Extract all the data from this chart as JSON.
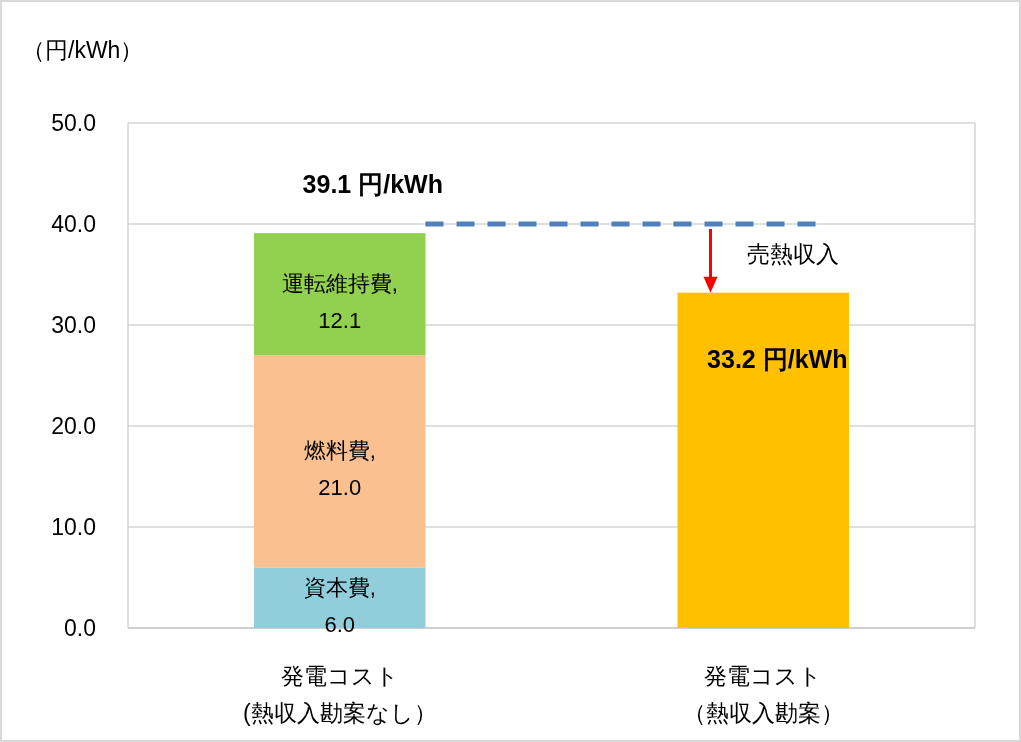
{
  "chart_data": {
    "type": "bar",
    "stacked": true,
    "ylabel": "（円/kWh）",
    "categories": [
      "発電コスト(熱収入勘案なし）",
      "発電コスト（熱収入勘案）"
    ],
    "series": [
      {
        "color": "#92cddc",
        "values": [
          6.0,
          null
        ],
        "value_labels": [
          "資本費,\n6.0",
          null
        ]
      },
      {
        "color": "#fac090",
        "values": [
          21.0,
          null
        ],
        "value_labels": [
          "燃料費,\n21.0",
          null
        ]
      },
      {
        "color": "#92d050",
        "values": [
          12.1,
          null
        ],
        "value_labels": [
          "運転維持費,\n12.1",
          null
        ]
      },
      {
        "color": "#ffc000",
        "values": [
          null,
          33.2
        ],
        "value_labels": [
          null,
          "33.2 円/kWh"
        ]
      }
    ],
    "totals": [
      "39.1 円/kWh",
      null
    ],
    "ref_lines": [
      {
        "axis": "y",
        "value": 40,
        "color": "#4f81bd",
        "line_style": "dashed"
      }
    ],
    "annotations": [
      "売熱収入"
    ],
    "ylim": [
      0,
      50
    ],
    "yticks": [
      {
        "value": 0,
        "label": "0.0"
      },
      {
        "value": 10,
        "label": "10.0"
      },
      {
        "value": 20,
        "label": "20.0"
      },
      {
        "value": 30,
        "label": "30.0"
      },
      {
        "value": 40,
        "label": "40.0"
      },
      {
        "value": 50,
        "label": "50.0"
      }
    ],
    "grid": "y"
  }
}
